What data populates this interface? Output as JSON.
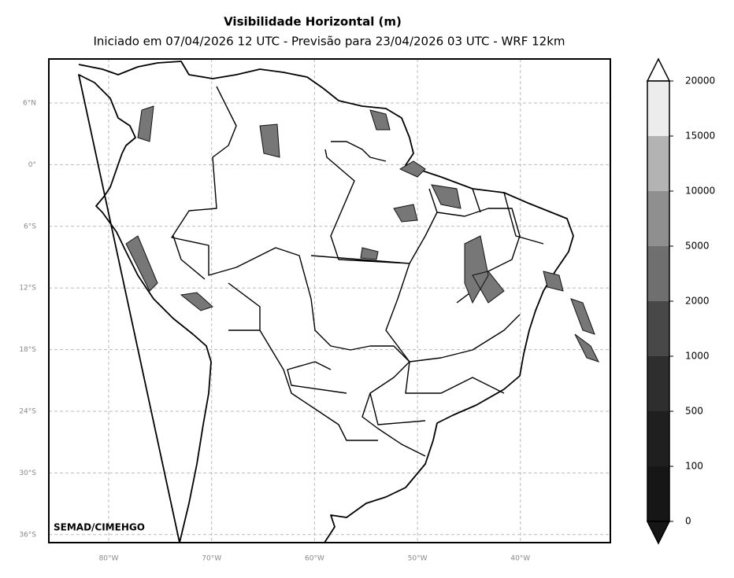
{
  "map": {
    "title": "Visibilidade Horizontal (m)",
    "subtitle": "Iniciado em 07/04/2026 12 UTC - Previsão para 23/04/2026 03 UTC - WRF 12km",
    "credit": "SEMAD/CIMEHGO",
    "lat_labels": [
      "6°N",
      "0°",
      "6°S",
      "12°S",
      "18°S",
      "24°S",
      "30°S",
      "36°S"
    ],
    "lon_labels": [
      "80°W",
      "70°W",
      "60°W",
      "50°W",
      "40°W"
    ],
    "colorbar": {
      "ticks": [
        0,
        100,
        500,
        1000,
        2000,
        5000,
        10000,
        15000,
        20000
      ],
      "colors": [
        "#161616",
        "#1f1f1f",
        "#2e2e2e",
        "#484848",
        "#6f6f6f",
        "#8f8f8f",
        "#b3b3b3",
        "#ececec"
      ]
    }
  }
}
